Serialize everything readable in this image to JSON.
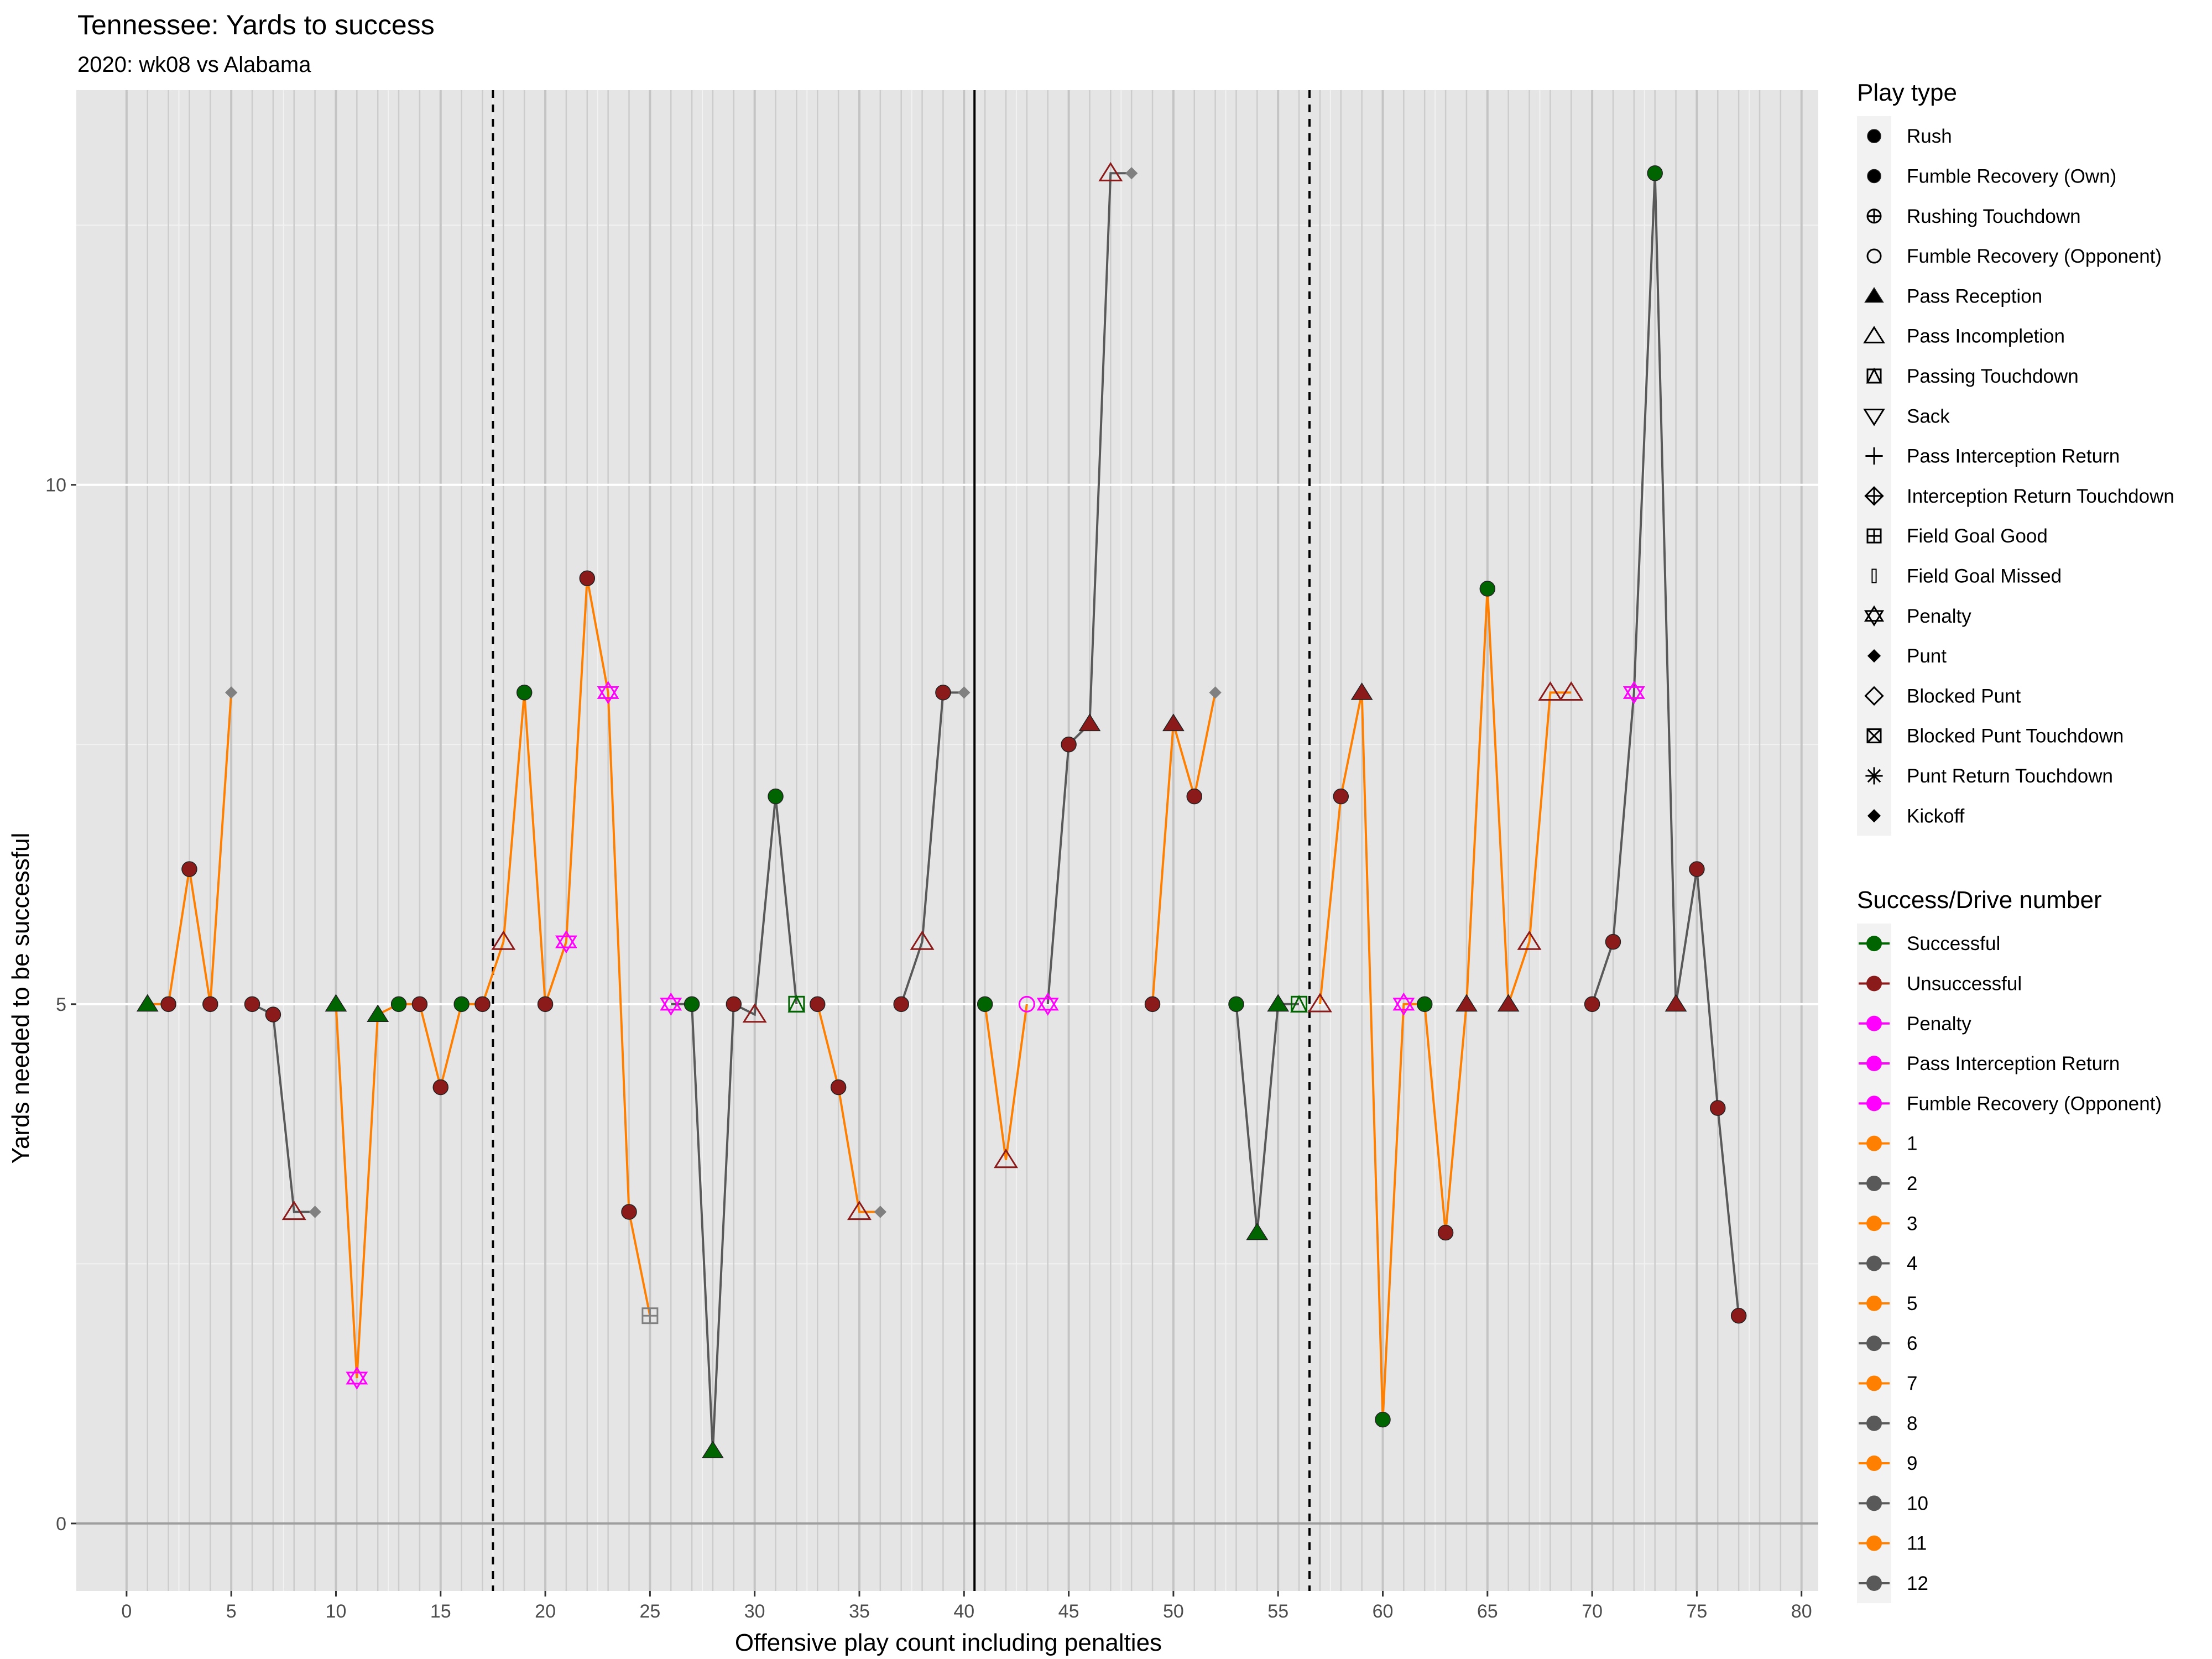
{
  "colors": {
    "successful": "#006400",
    "unsuccessful": "#8b1a1a",
    "penalty": "#ff00ff",
    "odd_drive": "#ff8000",
    "even_drive": "#595959",
    "kick": "#808080"
  },
  "chart_data": {
    "type": "line",
    "title": "Tennessee: Yards to success",
    "subtitle": "2020: wk08 vs Alabama",
    "xlabel": "Offensive play count including penalties",
    "ylabel": "Yards needed to be successful",
    "xlim": [
      -2.4,
      80.8
    ],
    "ylim": [
      -0.65,
      13.8
    ],
    "x_ticks": [
      0,
      5,
      10,
      15,
      20,
      25,
      30,
      35,
      40,
      45,
      50,
      55,
      60,
      65,
      70,
      75,
      80
    ],
    "y_ticks": [
      0,
      5,
      10
    ],
    "grid": true,
    "vlines": [
      {
        "x": 17.5,
        "style": "dashed"
      },
      {
        "x": 40.5,
        "style": "solid"
      },
      {
        "x": 56.5,
        "style": "dashed"
      }
    ],
    "drives": [
      {
        "drive": 1,
        "points": [
          [
            1,
            5,
            "pass_reception",
            "successful"
          ],
          [
            2,
            5,
            "rush",
            "unsuccessful"
          ],
          [
            3,
            6.3,
            "rush",
            "unsuccessful"
          ],
          [
            4,
            5,
            "rush",
            "unsuccessful"
          ],
          [
            5,
            8,
            "punt",
            "kick"
          ]
        ]
      },
      {
        "drive": 2,
        "points": [
          [
            6,
            5,
            "rush",
            "unsuccessful"
          ],
          [
            7,
            4.9,
            "rush",
            "unsuccessful"
          ],
          [
            8,
            3,
            "pass_incompletion",
            "unsuccessful"
          ],
          [
            9,
            3,
            "punt",
            "kick"
          ]
        ]
      },
      {
        "drive": 3,
        "points": [
          [
            10,
            5,
            "pass_reception",
            "successful"
          ],
          [
            11,
            1.4,
            "penalty",
            "penalty"
          ],
          [
            12,
            4.9,
            "pass_reception",
            "successful"
          ],
          [
            13,
            5,
            "rush",
            "successful"
          ],
          [
            14,
            5,
            "rush",
            "unsuccessful"
          ],
          [
            15,
            4.2,
            "rush",
            "unsuccessful"
          ],
          [
            16,
            5,
            "rush",
            "successful"
          ],
          [
            17,
            5,
            "rush",
            "unsuccessful"
          ],
          [
            18,
            5.6,
            "pass_incompletion",
            "unsuccessful"
          ],
          [
            19,
            8,
            "rush",
            "successful"
          ],
          [
            20,
            5,
            "rush",
            "unsuccessful"
          ],
          [
            21,
            5.6,
            "penalty",
            "penalty"
          ],
          [
            22,
            9.1,
            "rush",
            "unsuccessful"
          ],
          [
            23,
            8,
            "penalty",
            "penalty"
          ],
          [
            24,
            3,
            "rush",
            "unsuccessful"
          ],
          [
            25,
            2,
            "field_goal_good",
            "kick"
          ]
        ]
      },
      {
        "drive": 4,
        "points": [
          [
            26,
            5,
            "penalty",
            "penalty"
          ],
          [
            27,
            5,
            "rush",
            "successful"
          ],
          [
            28,
            0.7,
            "pass_reception",
            "successful"
          ],
          [
            29,
            5,
            "rush",
            "unsuccessful"
          ],
          [
            30,
            4.9,
            "pass_incompletion",
            "unsuccessful"
          ],
          [
            31,
            7,
            "rush",
            "successful"
          ],
          [
            32,
            5,
            "passing_touchdown",
            "successful"
          ]
        ]
      },
      {
        "drive": 5,
        "points": [
          [
            33,
            5,
            "rush",
            "unsuccessful"
          ],
          [
            34,
            4.2,
            "rush",
            "unsuccessful"
          ],
          [
            35,
            3,
            "pass_incompletion",
            "unsuccessful"
          ],
          [
            36,
            3,
            "punt",
            "kick"
          ]
        ]
      },
      {
        "drive": 6,
        "points": [
          [
            37,
            5,
            "rush",
            "unsuccessful"
          ],
          [
            38,
            5.6,
            "pass_incompletion",
            "unsuccessful"
          ],
          [
            39,
            8,
            "rush",
            "unsuccessful"
          ],
          [
            40,
            8,
            "punt",
            "kick"
          ]
        ]
      },
      {
        "drive": 7,
        "points": [
          [
            41,
            5,
            "rush",
            "successful"
          ],
          [
            42,
            3.5,
            "pass_incompletion",
            "unsuccessful"
          ],
          [
            43,
            5,
            "fumble_recovery_opponent",
            "penalty"
          ]
        ]
      },
      {
        "drive": 8,
        "points": [
          [
            44,
            5,
            "penalty",
            "penalty"
          ],
          [
            45,
            7.5,
            "rush",
            "unsuccessful"
          ],
          [
            46,
            7.7,
            "pass_reception",
            "unsuccessful"
          ],
          [
            47,
            13,
            "pass_incompletion",
            "unsuccessful"
          ],
          [
            48,
            13,
            "punt",
            "kick"
          ]
        ]
      },
      {
        "drive": 9,
        "points": [
          [
            49,
            5,
            "rush",
            "unsuccessful"
          ],
          [
            50,
            7.7,
            "pass_reception",
            "unsuccessful"
          ],
          [
            51,
            7,
            "rush",
            "unsuccessful"
          ],
          [
            52,
            8,
            "punt",
            "kick"
          ]
        ]
      },
      {
        "drive": 10,
        "points": [
          [
            53,
            5,
            "rush",
            "successful"
          ],
          [
            54,
            2.8,
            "pass_reception",
            "successful"
          ],
          [
            55,
            5,
            "pass_reception",
            "successful"
          ],
          [
            56,
            5,
            "passing_touchdown",
            "successful"
          ]
        ]
      },
      {
        "drive": 11,
        "points": [
          [
            57,
            5,
            "pass_incompletion",
            "unsuccessful"
          ],
          [
            58,
            7,
            "rush",
            "unsuccessful"
          ],
          [
            59,
            8,
            "pass_reception",
            "unsuccessful"
          ],
          [
            60,
            1,
            "rush",
            "successful"
          ],
          [
            61,
            5,
            "penalty",
            "penalty"
          ],
          [
            62,
            5,
            "rush",
            "successful"
          ],
          [
            63,
            2.8,
            "rush",
            "unsuccessful"
          ],
          [
            64,
            5,
            "pass_reception",
            "unsuccessful"
          ],
          [
            65,
            9,
            "rush",
            "successful"
          ],
          [
            66,
            5,
            "pass_reception",
            "unsuccessful"
          ],
          [
            67,
            5.6,
            "pass_incompletion",
            "unsuccessful"
          ],
          [
            68,
            8,
            "pass_incompletion",
            "unsuccessful"
          ],
          [
            69,
            8,
            "pass_incompletion",
            "unsuccessful"
          ]
        ]
      },
      {
        "drive": 12,
        "points": [
          [
            70,
            5,
            "rush",
            "unsuccessful"
          ],
          [
            71,
            5.6,
            "rush",
            "unsuccessful"
          ],
          [
            72,
            8,
            "penalty",
            "penalty"
          ],
          [
            73,
            13,
            "rush",
            "successful"
          ],
          [
            74,
            5,
            "pass_reception",
            "unsuccessful"
          ],
          [
            75,
            6.3,
            "rush",
            "unsuccessful"
          ],
          [
            76,
            4,
            "rush",
            "unsuccessful"
          ],
          [
            77,
            2,
            "rush",
            "unsuccessful"
          ]
        ]
      }
    ],
    "legend_play_type": {
      "title": "Play type",
      "items": [
        {
          "label": "Rush",
          "shape": "circle_filled"
        },
        {
          "label": "Fumble Recovery (Own)",
          "shape": "circle_filled"
        },
        {
          "label": "Rushing Touchdown",
          "shape": "circle_plus"
        },
        {
          "label": "Fumble Recovery (Opponent)",
          "shape": "circle_open"
        },
        {
          "label": "Pass Reception",
          "shape": "triangle_filled"
        },
        {
          "label": "Pass Incompletion",
          "shape": "triangle_open"
        },
        {
          "label": "Passing Touchdown",
          "shape": "square_triangle"
        },
        {
          "label": "Sack",
          "shape": "triangle_down_open"
        },
        {
          "label": "Pass Interception Return",
          "shape": "plus"
        },
        {
          "label": "Interception Return Touchdown",
          "shape": "diamond_plus"
        },
        {
          "label": "Field Goal Good",
          "shape": "square_plus"
        },
        {
          "label": "Field Goal Missed",
          "shape": "thin_rect"
        },
        {
          "label": "Penalty",
          "shape": "star_of_david"
        },
        {
          "label": "Punt",
          "shape": "diamond_filled"
        },
        {
          "label": "Blocked Punt",
          "shape": "diamond_open"
        },
        {
          "label": "Blocked Punt Touchdown",
          "shape": "square_x"
        },
        {
          "label": "Punt Return Touchdown",
          "shape": "asterisk"
        },
        {
          "label": "Kickoff",
          "shape": "diamond_filled"
        }
      ]
    },
    "legend_success_drive": {
      "title": "Success/Drive number",
      "items": [
        {
          "label": "Successful",
          "color": "#006400"
        },
        {
          "label": "Unsuccessful",
          "color": "#8b1a1a"
        },
        {
          "label": "Penalty",
          "color": "#ff00ff"
        },
        {
          "label": "Pass Interception Return",
          "color": "#ff00ff"
        },
        {
          "label": "Fumble Recovery (Opponent)",
          "color": "#ff00ff"
        },
        {
          "label": "1",
          "color": "#ff8000"
        },
        {
          "label": "2",
          "color": "#595959"
        },
        {
          "label": "3",
          "color": "#ff8000"
        },
        {
          "label": "4",
          "color": "#595959"
        },
        {
          "label": "5",
          "color": "#ff8000"
        },
        {
          "label": "6",
          "color": "#595959"
        },
        {
          "label": "7",
          "color": "#ff8000"
        },
        {
          "label": "8",
          "color": "#595959"
        },
        {
          "label": "9",
          "color": "#ff8000"
        },
        {
          "label": "10",
          "color": "#595959"
        },
        {
          "label": "11",
          "color": "#ff8000"
        },
        {
          "label": "12",
          "color": "#595959"
        }
      ]
    }
  }
}
